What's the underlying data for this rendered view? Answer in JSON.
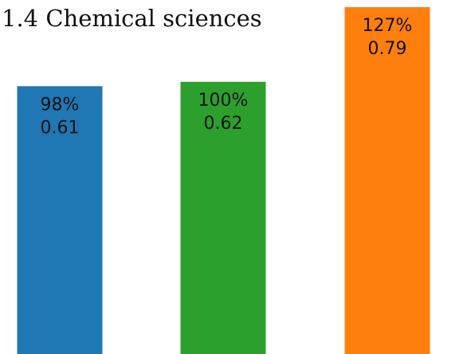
{
  "chart_data": {
    "type": "bar",
    "title": "1.4 Chemical sciences",
    "categories": [
      "",
      "",
      ""
    ],
    "series": [
      {
        "values": [
          0.61,
          0.62,
          0.79
        ],
        "percent_labels": [
          "98%",
          "100%",
          "127%"
        ],
        "value_labels": [
          "0.61",
          "0.62",
          "0.79"
        ],
        "colors": [
          "#1f77b4",
          "#2ca02c",
          "#ff7f0e"
        ]
      }
    ],
    "xlabel": "",
    "ylabel": "",
    "ylim": [
      0,
      0.79
    ],
    "grid": false,
    "legend": "none"
  }
}
